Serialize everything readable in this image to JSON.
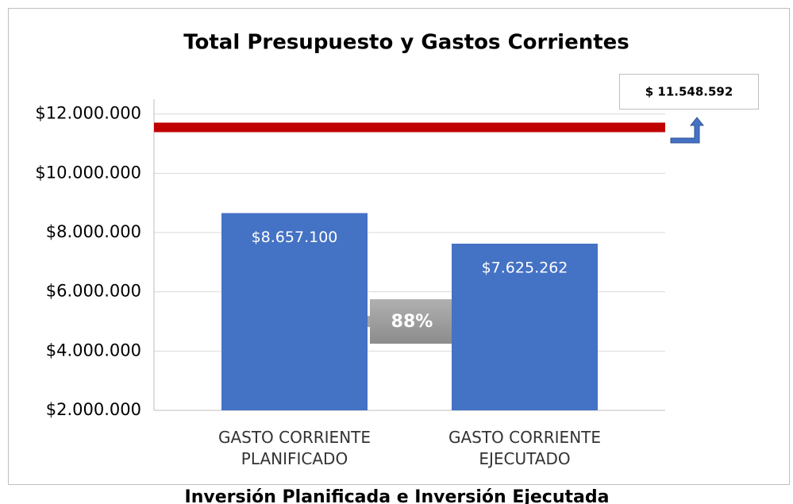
{
  "chart_data": {
    "type": "bar",
    "title": "Total Presupuesto y Gastos Corrientes",
    "categories": [
      "GASTO CORRIENTE PLANIFICADO",
      "GASTO CORRIENTE EJECUTADO"
    ],
    "values": [
      8657100,
      7625262
    ],
    "value_labels": [
      "$8.657.100",
      "$7.625.262"
    ],
    "color": "#4472c4",
    "ylim": [
      2000000,
      12500000
    ],
    "yticks": [
      {
        "value": 2000000,
        "label": "$2.000.000"
      },
      {
        "value": 4000000,
        "label": "$4.000.000"
      },
      {
        "value": 6000000,
        "label": "$6.000.000"
      },
      {
        "value": 8000000,
        "label": "$8.000.000"
      },
      {
        "value": 10000000,
        "label": "$10.000.000"
      },
      {
        "value": 12000000,
        "label": "$12.000.000"
      }
    ],
    "grid": true,
    "reference_line": {
      "value": 11548592,
      "label": "$ 11.548.592",
      "color": "#c00000"
    },
    "annotation": "88%",
    "caption": "Inversión Planificada e Inversión Ejecutada"
  }
}
